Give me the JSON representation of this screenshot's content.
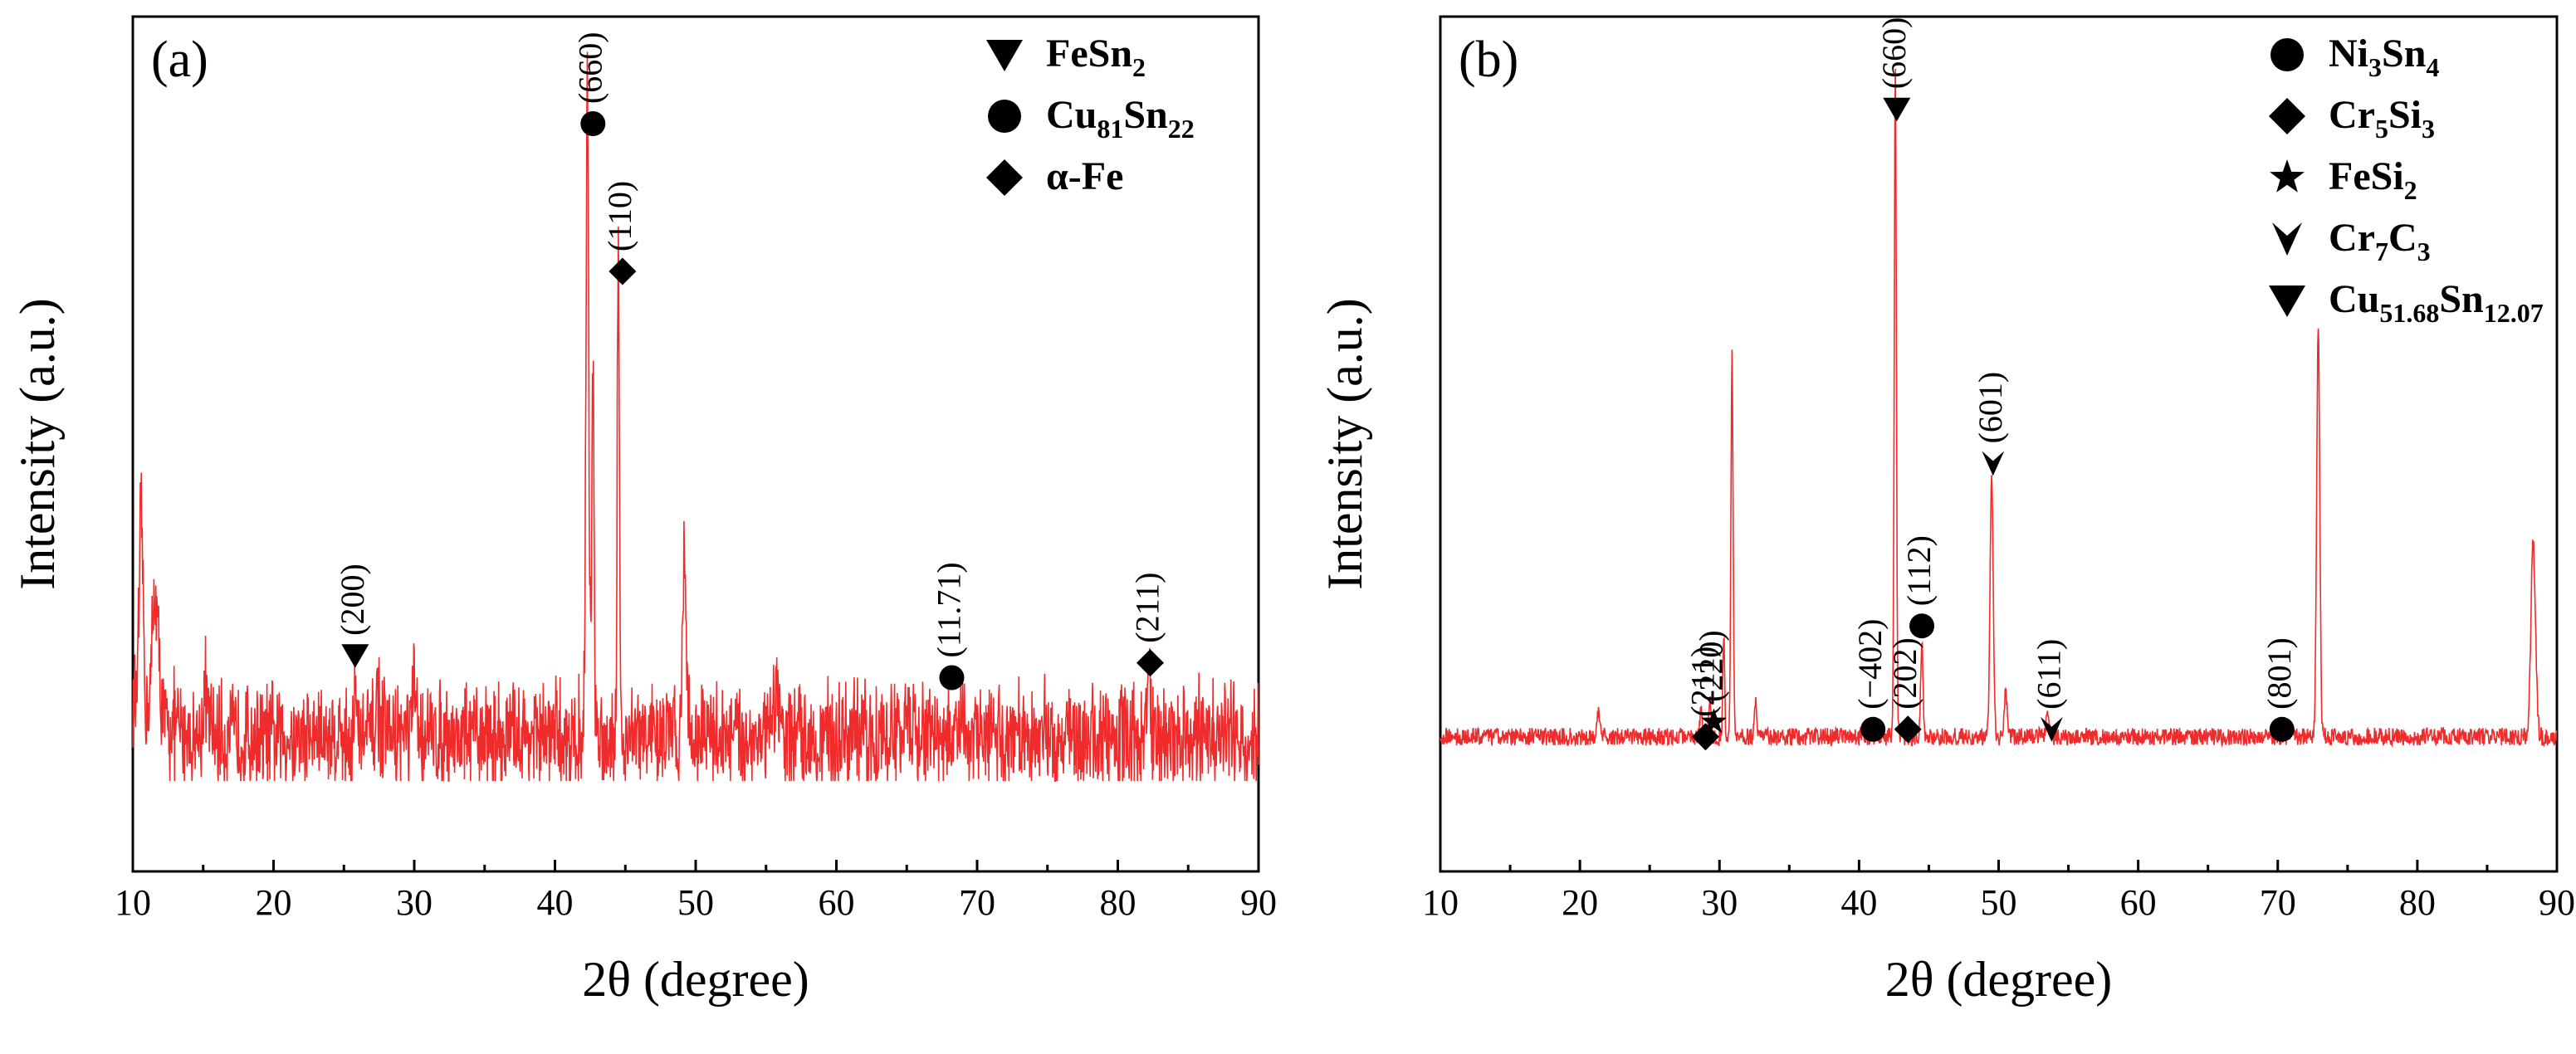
{
  "chart_data": [
    {
      "type": "line",
      "panel": "(a)",
      "xlabel": "2θ (degree)",
      "ylabel": "Intensity (a.u.)",
      "xlim": [
        10,
        90
      ],
      "xticks": [
        10,
        20,
        30,
        40,
        50,
        60,
        70,
        80,
        90
      ],
      "color": "#ef2b2b",
      "legend": [
        {
          "symbol": "triangle-down",
          "base": "FeSn",
          "sub": "2",
          "label": "FeSn2"
        },
        {
          "symbol": "circle",
          "base": "Cu",
          "sub": "81",
          "base2": "Sn",
          "sub2": "22",
          "label": "Cu81Sn22"
        },
        {
          "symbol": "diamond",
          "base": "α-Fe",
          "label": "α-Fe"
        }
      ],
      "baseline": 0.07,
      "noise": 0.06,
      "peaks": [
        {
          "x": 10.6,
          "h": 0.25,
          "w": 0.25
        },
        {
          "x": 11.6,
          "h": 0.17,
          "w": 0.4
        },
        {
          "x": 15.2,
          "h": 0.06,
          "w": 0.3
        },
        {
          "x": 25.8,
          "h": 0.05,
          "w": 0.2
        },
        {
          "x": 27.4,
          "h": 0.06,
          "w": 0.2
        },
        {
          "x": 30.0,
          "h": 0.05,
          "w": 0.3
        },
        {
          "x": 42.3,
          "h": 0.88,
          "w": 0.18
        },
        {
          "x": 42.7,
          "h": 0.5,
          "w": 0.15
        },
        {
          "x": 44.5,
          "h": 0.62,
          "w": 0.15
        },
        {
          "x": 49.2,
          "h": 0.27,
          "w": 0.22
        },
        {
          "x": 55.8,
          "h": 0.06,
          "w": 0.3
        },
        {
          "x": 64.9,
          "h": 0.05,
          "w": 0.2
        },
        {
          "x": 82.2,
          "h": 0.08,
          "w": 0.25
        }
      ],
      "annotations": [
        {
          "x": 42.7,
          "y": 0.9,
          "label": "(660)",
          "symbol": "circle"
        },
        {
          "x": 44.8,
          "y": 0.7,
          "label": "(110)",
          "symbol": "diamond"
        },
        {
          "x": 25.8,
          "y": 0.18,
          "label": "(200)",
          "symbol": "triangle-down"
        },
        {
          "x": 68.2,
          "y": 0.15,
          "label": "(11.71)",
          "symbol": "circle"
        },
        {
          "x": 82.3,
          "y": 0.17,
          "label": "(211)",
          "symbol": "diamond"
        }
      ]
    },
    {
      "type": "line",
      "panel": "(b)",
      "xlabel": "2θ (degree)",
      "ylabel": "Intensity (a.u.)",
      "xlim": [
        10,
        90
      ],
      "xticks": [
        10,
        20,
        30,
        40,
        50,
        60,
        70,
        80,
        90
      ],
      "color": "#ef2b2b",
      "legend": [
        {
          "symbol": "circle",
          "base": "Ni",
          "sub": "3",
          "base2": "Sn",
          "sub2": "4",
          "label": "Ni3Sn4"
        },
        {
          "symbol": "diamond",
          "base": "Cr",
          "sub": "5",
          "base2": "Si",
          "sub2": "3",
          "label": "Cr5Si3"
        },
        {
          "symbol": "star",
          "base": "FeSi",
          "sub": "2",
          "label": "FeSi2"
        },
        {
          "symbol": "arrowhead",
          "base": "Cr",
          "sub": "7",
          "base2": "C",
          "sub2": "3",
          "label": "Cr7C3"
        },
        {
          "symbol": "triangle-down",
          "base": "Cu",
          "sub": "51.68",
          "base2": "Sn",
          "sub2": "12.07",
          "label": "Cu51.68Sn12.07"
        }
      ],
      "baseline": 0.07,
      "noise": 0.012,
      "peaks": [
        {
          "x": 21.3,
          "h": 0.03,
          "w": 0.2
        },
        {
          "x": 28.7,
          "h": 0.04,
          "w": 0.15
        },
        {
          "x": 29.3,
          "h": 0.05,
          "w": 0.15
        },
        {
          "x": 30.9,
          "h": 0.52,
          "w": 0.14
        },
        {
          "x": 30.3,
          "h": 0.14,
          "w": 0.12
        },
        {
          "x": 32.6,
          "h": 0.05,
          "w": 0.15
        },
        {
          "x": 42.6,
          "h": 0.9,
          "w": 0.14
        },
        {
          "x": 44.5,
          "h": 0.13,
          "w": 0.15
        },
        {
          "x": 49.5,
          "h": 0.36,
          "w": 0.2
        },
        {
          "x": 50.5,
          "h": 0.06,
          "w": 0.2
        },
        {
          "x": 53.5,
          "h": 0.04,
          "w": 0.15
        },
        {
          "x": 72.9,
          "h": 0.56,
          "w": 0.2
        },
        {
          "x": 88.3,
          "h": 0.26,
          "w": 0.3
        }
      ],
      "annotations": [
        {
          "x": 42.7,
          "y": 0.92,
          "label": "(660)",
          "symbol": "triangle-down"
        },
        {
          "x": 49.6,
          "y": 0.44,
          "label": "(601)",
          "symbol": "arrowhead"
        },
        {
          "x": 53.8,
          "y": 0.08,
          "label": "(611)",
          "symbol": "arrowhead"
        },
        {
          "x": 70.3,
          "y": 0.08,
          "label": "(801)",
          "symbol": "circle"
        },
        {
          "x": 41.0,
          "y": 0.08,
          "label": "(−402)",
          "symbol": "circle"
        },
        {
          "x": 44.5,
          "y": 0.22,
          "label": "(112)",
          "symbol": "circle"
        },
        {
          "x": 43.5,
          "y": 0.08,
          "label": "(202)",
          "symbol": "diamond"
        },
        {
          "x": 29.0,
          "y": 0.07,
          "label": "(211)",
          "symbol": "diamond"
        },
        {
          "x": 29.6,
          "y": 0.09,
          "label": "(220)",
          "symbol": "star"
        }
      ]
    }
  ]
}
